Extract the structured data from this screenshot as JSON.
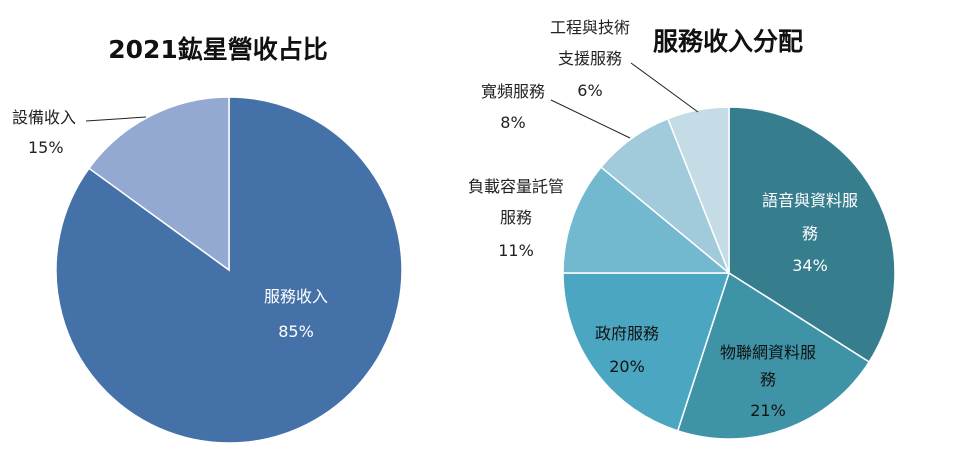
{
  "chart_data": [
    {
      "type": "pie",
      "title": "2021鈜星營收占比",
      "slices": [
        {
          "label": "服務收入",
          "value": 85,
          "value_label": "85%",
          "color": "#4472a8"
        },
        {
          "label": "設備收入",
          "value": 15,
          "value_label": "15%",
          "color": "#93a9d1"
        }
      ]
    },
    {
      "type": "pie",
      "title": "服務收入分配",
      "slices": [
        {
          "label": "語音與資料服務",
          "value": 34,
          "value_label": "34%",
          "color": "#367d8e"
        },
        {
          "label": "物聯網資料服務",
          "value": 21,
          "value_label": "21%",
          "color": "#3e93a7"
        },
        {
          "label": "政府服務",
          "value": 20,
          "value_label": "20%",
          "color": "#4ba7c1"
        },
        {
          "label": "負載容量託管服務",
          "value": 11,
          "value_label": "11%",
          "color": "#72b8cf"
        },
        {
          "label": "寬頻服務",
          "value": 8,
          "value_label": "8%",
          "color": "#a1cadb"
        },
        {
          "label": "工程與技術支援服務",
          "value": 6,
          "value_label": "6%",
          "color": "#c3dce6"
        }
      ]
    }
  ]
}
